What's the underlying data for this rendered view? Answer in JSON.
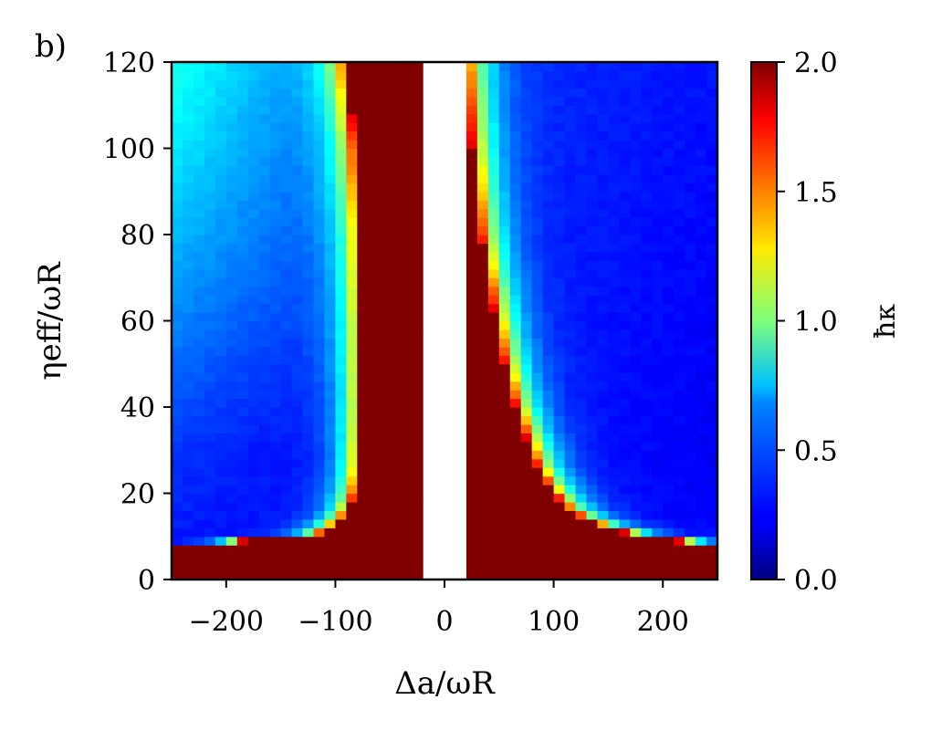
{
  "chart_data": {
    "type": "heatmap",
    "panel_label": "b)",
    "xlabel": "Δa/ωR",
    "ylabel": "ηeff/ωR",
    "colorbar_label": "ħκ",
    "xlim": [
      -250,
      250
    ],
    "ylim": [
      0,
      120
    ],
    "clim": [
      0,
      2.0
    ],
    "colormap": "jet",
    "xticks": [
      -200,
      -100,
      0,
      100,
      200
    ],
    "xtick_labels": [
      "−200",
      "−100",
      "0",
      "100",
      "200"
    ],
    "yticks": [
      0,
      20,
      40,
      60,
      80,
      100,
      120
    ],
    "ytick_labels": [
      "0",
      "20",
      "40",
      "60",
      "80",
      "100",
      "120"
    ],
    "cticks": [
      0.0,
      0.5,
      1.0,
      1.5,
      2.0
    ],
    "ctick_labels": [
      "0.0",
      "0.5",
      "1.0",
      "1.5",
      "2.0"
    ],
    "grid_x": {
      "start": -250,
      "step": 10,
      "count": 50
    },
    "grid_y": {
      "start": 0,
      "step": 2,
      "count": 60
    },
    "no_data_band": [
      -20,
      20
    ],
    "saturated_value": 2.0,
    "boundary_left": [
      [
        8,
        -250
      ],
      [
        10,
        -120
      ],
      [
        12,
        -105
      ],
      [
        14,
        -95
      ],
      [
        16,
        -88
      ],
      [
        20,
        -82
      ],
      [
        26,
        -78
      ],
      [
        40,
        -76
      ],
      [
        60,
        -76
      ],
      [
        80,
        -77
      ],
      [
        100,
        -82
      ],
      [
        120,
        -90
      ]
    ],
    "boundary_right": [
      [
        8,
        250
      ],
      [
        10,
        180
      ],
      [
        12,
        150
      ],
      [
        14,
        130
      ],
      [
        16,
        115
      ],
      [
        20,
        100
      ],
      [
        26,
        85
      ],
      [
        40,
        65
      ],
      [
        50,
        55
      ],
      [
        60,
        47
      ],
      [
        70,
        40
      ],
      [
        80,
        33
      ],
      [
        100,
        25
      ],
      [
        120,
        20
      ]
    ],
    "regions": [
      {
        "description": "η below ~8: saturated for all detuning",
        "value": 2.0
      },
      {
        "description": "|Δ| < 20: not computed",
        "value": null
      }
    ]
  }
}
